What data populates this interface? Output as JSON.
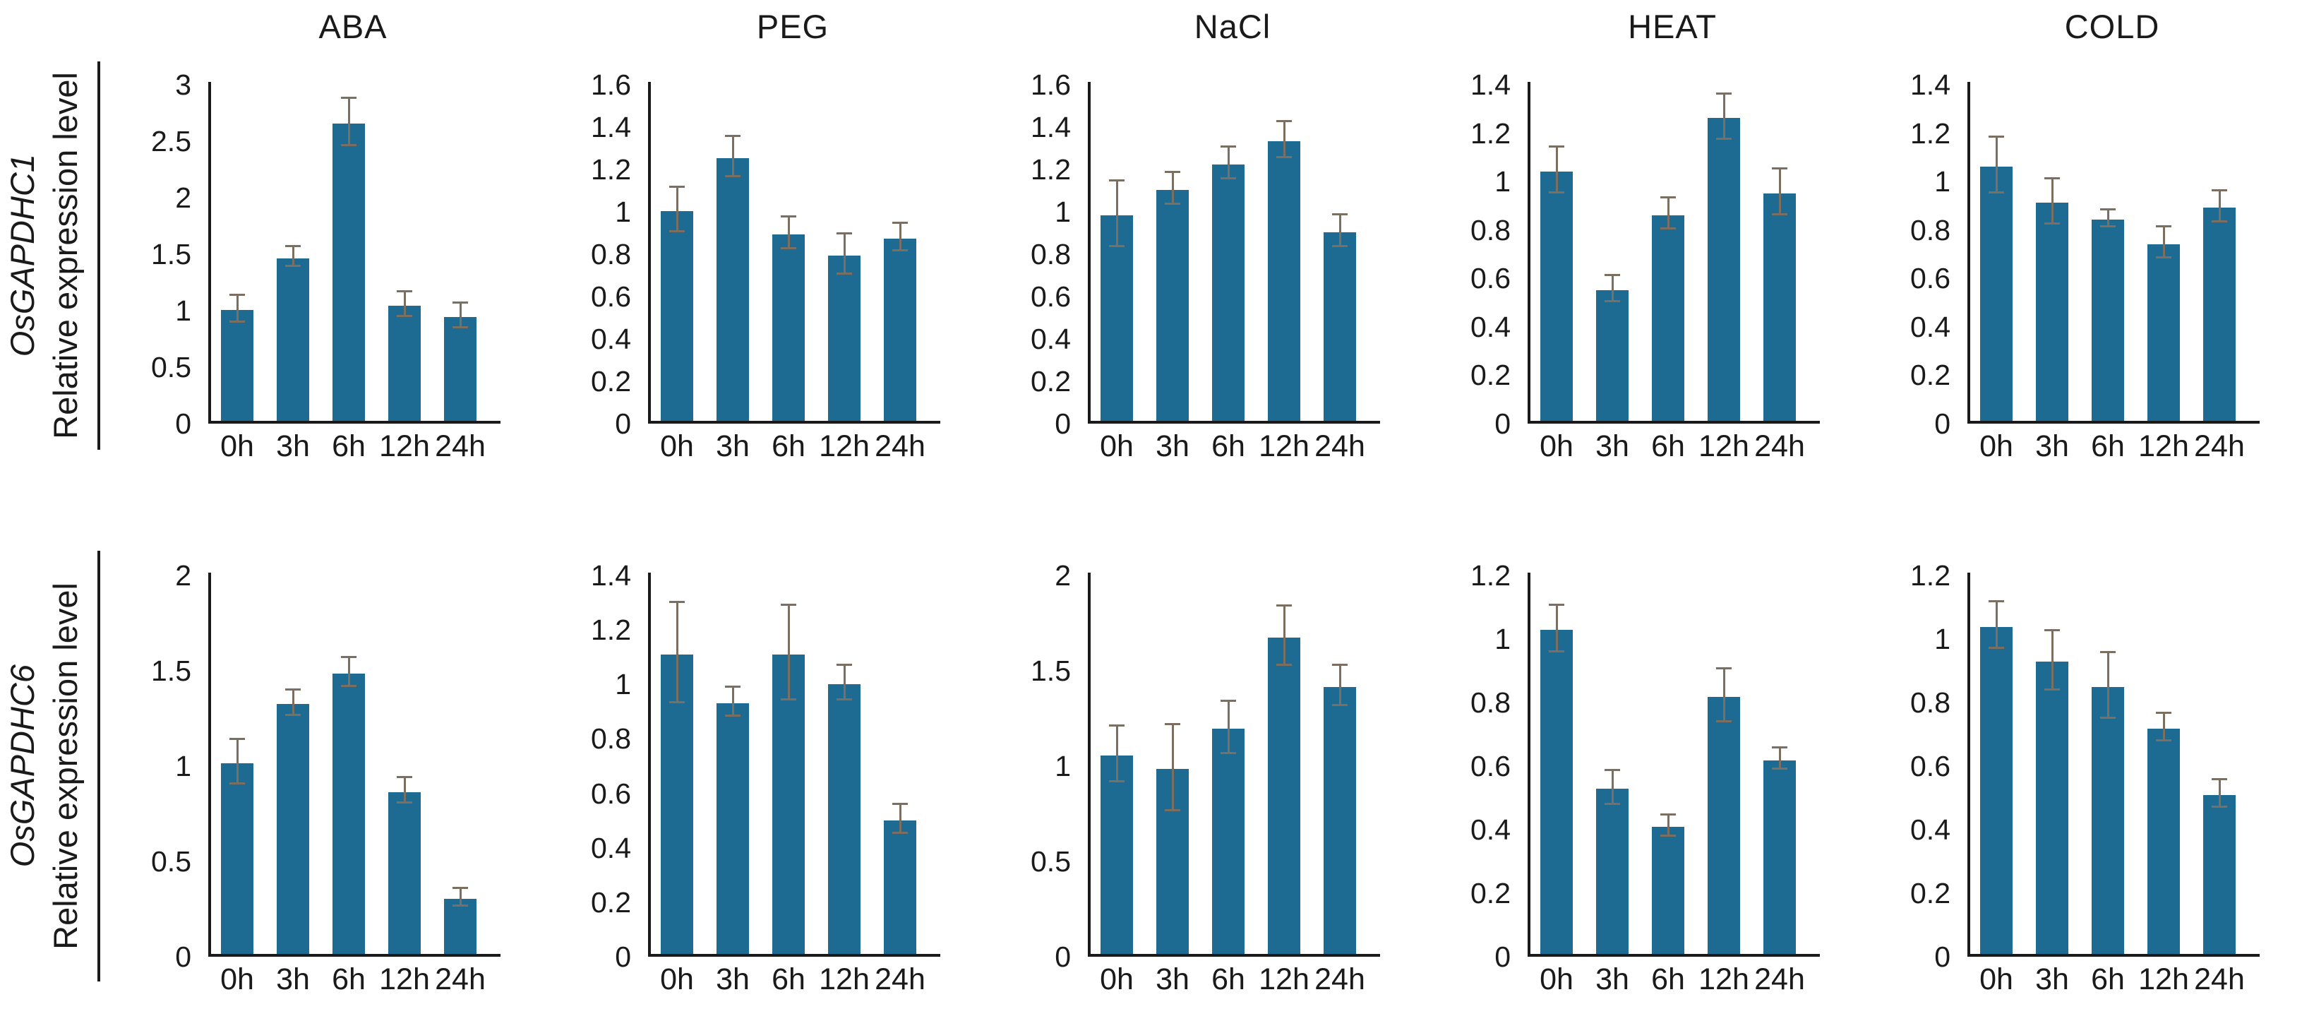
{
  "figure": {
    "ylabel": "Relative expression level",
    "categories": [
      "0h",
      "3h",
      "6h",
      "12h",
      "24h"
    ],
    "treatments": [
      "ABA",
      "PEG",
      "NaCl",
      "HEAT",
      "COLD"
    ],
    "rows": [
      {
        "gene": "OsGAPDHC1",
        "ylabel": "Relative expression level"
      },
      {
        "gene": "OsGAPDHC6",
        "ylabel": "Relative expression level"
      }
    ]
  },
  "chart_data": [
    {
      "type": "bar",
      "row_gene": "OsGAPDHC1",
      "treatment": "ABA",
      "title": "ABA",
      "categories": [
        "0h",
        "3h",
        "6h",
        "12h",
        "24h"
      ],
      "values": [
        0.98,
        1.44,
        2.63,
        1.02,
        0.92
      ],
      "errors": [
        0.11,
        0.08,
        0.2,
        0.1,
        0.1
      ],
      "ylim": [
        0,
        3
      ],
      "ytick_step": 0.5
    },
    {
      "type": "bar",
      "row_gene": "OsGAPDHC1",
      "treatment": "PEG",
      "title": "PEG",
      "categories": [
        "0h",
        "3h",
        "6h",
        "12h",
        "24h"
      ],
      "values": [
        0.99,
        1.24,
        0.88,
        0.78,
        0.86
      ],
      "errors": [
        0.1,
        0.09,
        0.07,
        0.09,
        0.06
      ],
      "ylim": [
        0,
        1.6
      ],
      "ytick_step": 0.2
    },
    {
      "type": "bar",
      "row_gene": "OsGAPDHC1",
      "treatment": "NaCl",
      "title": "NaCl",
      "categories": [
        "0h",
        "3h",
        "6h",
        "12h",
        "24h"
      ],
      "values": [
        0.97,
        1.09,
        1.21,
        1.32,
        0.89
      ],
      "errors": [
        0.15,
        0.07,
        0.07,
        0.08,
        0.07
      ],
      "ylim": [
        0,
        1.6
      ],
      "ytick_step": 0.2
    },
    {
      "type": "bar",
      "row_gene": "OsGAPDHC1",
      "treatment": "HEAT",
      "title": "HEAT",
      "categories": [
        "0h",
        "3h",
        "6h",
        "12h",
        "24h"
      ],
      "values": [
        1.03,
        0.54,
        0.85,
        1.25,
        0.94
      ],
      "errors": [
        0.09,
        0.05,
        0.06,
        0.09,
        0.09
      ],
      "ylim": [
        0,
        1.4
      ],
      "ytick_step": 0.2
    },
    {
      "type": "bar",
      "row_gene": "OsGAPDHC1",
      "treatment": "COLD",
      "title": "COLD",
      "categories": [
        "0h",
        "3h",
        "6h",
        "12h",
        "24h"
      ],
      "values": [
        1.05,
        0.9,
        0.83,
        0.73,
        0.88
      ],
      "errors": [
        0.11,
        0.09,
        0.03,
        0.06,
        0.06
      ],
      "ylim": [
        0,
        1.4
      ],
      "ytick_step": 0.2
    },
    {
      "type": "bar",
      "row_gene": "OsGAPDHC6",
      "treatment": "ABA",
      "title": "",
      "categories": [
        "0h",
        "3h",
        "6h",
        "12h",
        "24h"
      ],
      "values": [
        1.0,
        1.31,
        1.47,
        0.85,
        0.29
      ],
      "errors": [
        0.11,
        0.06,
        0.07,
        0.06,
        0.04
      ],
      "ylim": [
        0,
        2
      ],
      "ytick_step": 0.5
    },
    {
      "type": "bar",
      "row_gene": "OsGAPDHC6",
      "treatment": "PEG",
      "title": "",
      "categories": [
        "0h",
        "3h",
        "6h",
        "12h",
        "24h"
      ],
      "values": [
        1.1,
        0.92,
        1.1,
        0.99,
        0.49
      ],
      "errors": [
        0.18,
        0.05,
        0.17,
        0.06,
        0.05
      ],
      "ylim": [
        0,
        1.4
      ],
      "ytick_step": 0.2
    },
    {
      "type": "bar",
      "row_gene": "OsGAPDHC6",
      "treatment": "NaCl",
      "title": "",
      "categories": [
        "0h",
        "3h",
        "6h",
        "12h",
        "24h"
      ],
      "values": [
        1.04,
        0.97,
        1.18,
        1.66,
        1.4
      ],
      "errors": [
        0.14,
        0.22,
        0.13,
        0.15,
        0.1
      ],
      "ylim": [
        0,
        2
      ],
      "ytick_step": 0.5
    },
    {
      "type": "bar",
      "row_gene": "OsGAPDHC6",
      "treatment": "HEAT",
      "title": "",
      "categories": [
        "0h",
        "3h",
        "6h",
        "12h",
        "24h"
      ],
      "values": [
        1.02,
        0.52,
        0.4,
        0.81,
        0.61
      ],
      "errors": [
        0.07,
        0.05,
        0.03,
        0.08,
        0.03
      ],
      "ylim": [
        0,
        1.2
      ],
      "ytick_step": 0.2
    },
    {
      "type": "bar",
      "row_gene": "OsGAPDHC6",
      "treatment": "COLD",
      "title": "",
      "categories": [
        "0h",
        "3h",
        "6h",
        "12h",
        "24h"
      ],
      "values": [
        1.03,
        0.92,
        0.84,
        0.71,
        0.5
      ],
      "errors": [
        0.07,
        0.09,
        0.1,
        0.04,
        0.04
      ],
      "ylim": [
        0,
        1.2
      ],
      "ytick_step": 0.2
    }
  ],
  "colors": {
    "bar": "#1d6a92",
    "error_bar": "#7b6f62",
    "axis": "#1a1a1a",
    "text": "#1a1a1a"
  }
}
